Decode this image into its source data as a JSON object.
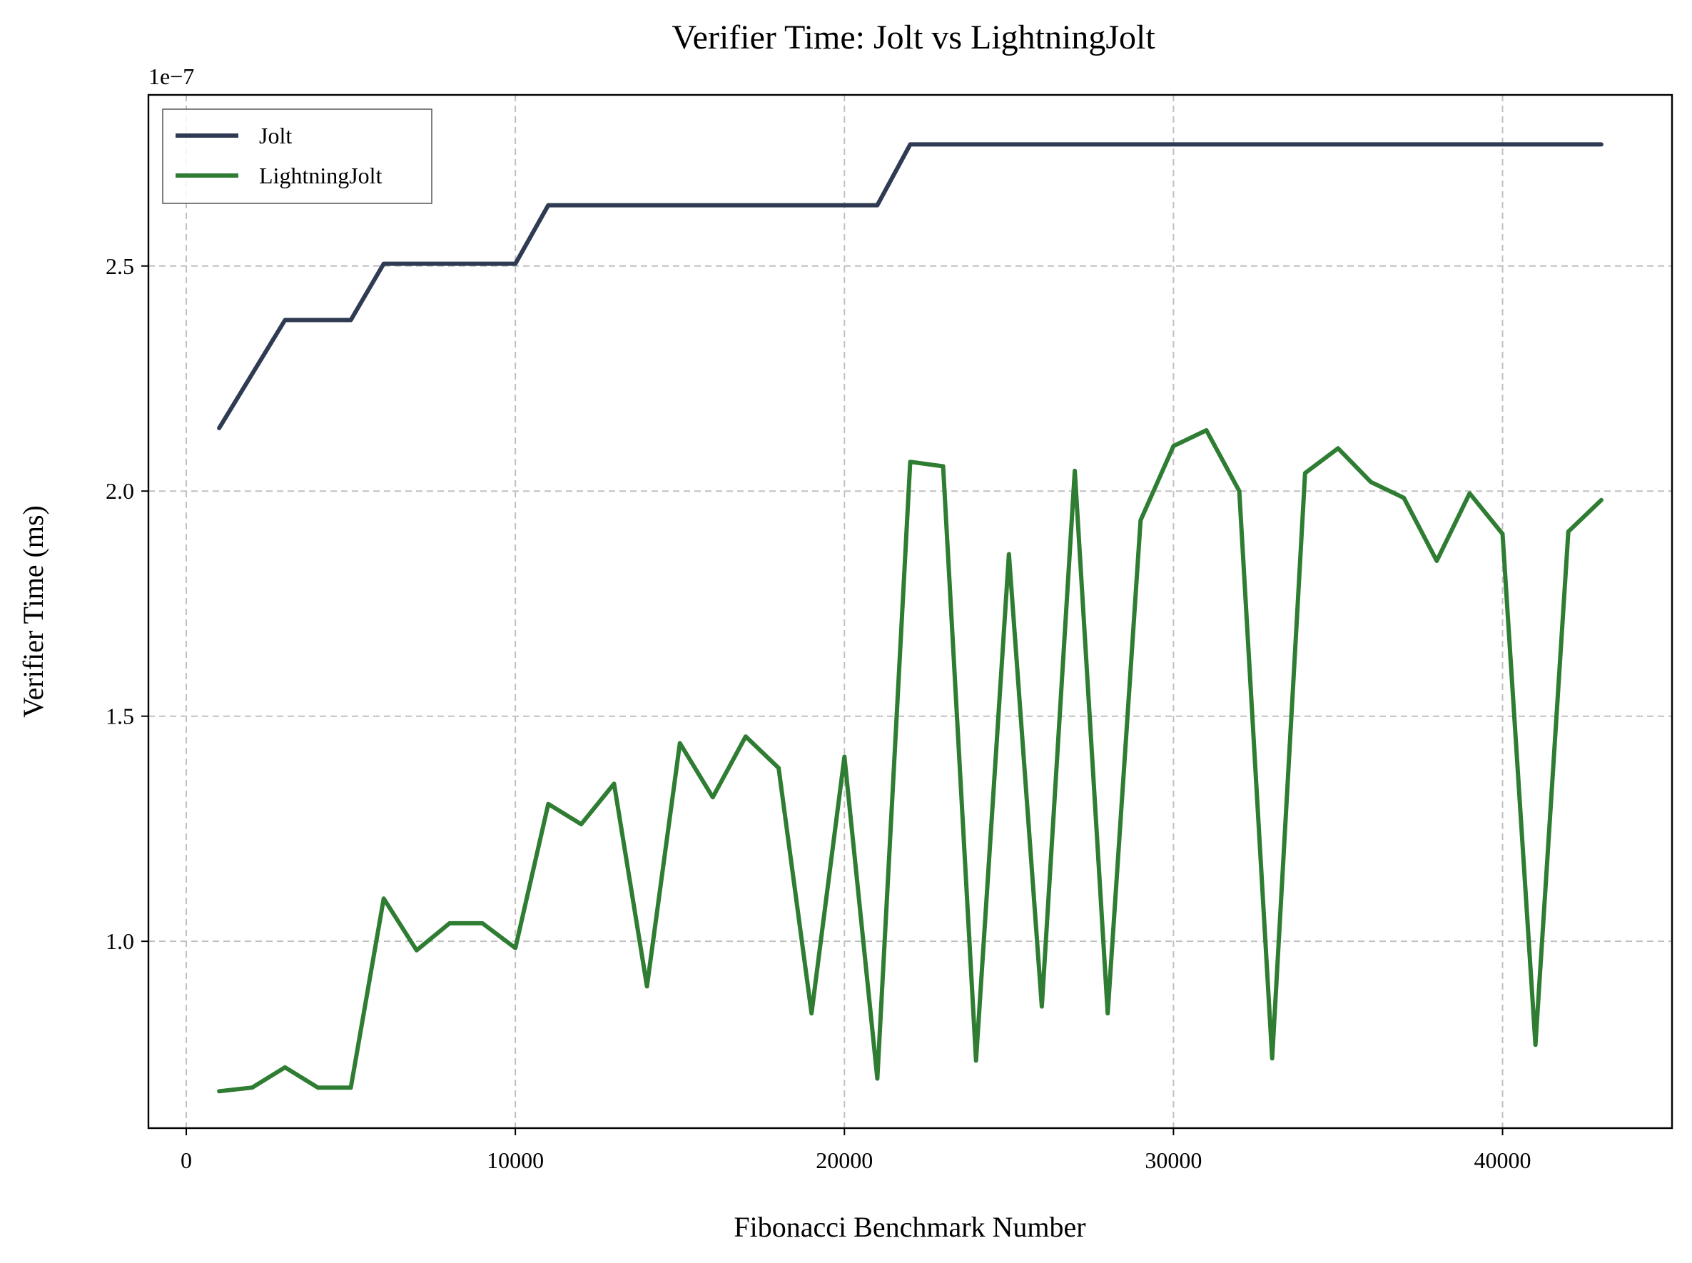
{
  "chart_data": {
    "type": "line",
    "title": "Verifier Time: Jolt vs LightningJolt",
    "xlabel": "Fibonacci Benchmark Number",
    "ylabel": "Verifier Time (ms)",
    "y_offset_label": "1e−7",
    "xlim": [
      -1150,
      45150
    ],
    "ylim": [
      0.585,
      2.88
    ],
    "x_ticks": [
      0,
      10000,
      20000,
      30000,
      40000
    ],
    "x_tick_labels": [
      "0",
      "10000",
      "20000",
      "30000",
      "40000"
    ],
    "y_ticks": [
      1.0,
      1.5,
      2.0,
      2.5
    ],
    "y_tick_labels": [
      "1.0",
      "1.5",
      "2.0",
      "2.5"
    ],
    "grid": true,
    "legend_position": "upper-left",
    "x": [
      1000,
      2000,
      3000,
      4000,
      5000,
      6000,
      7000,
      8000,
      9000,
      10000,
      11000,
      12000,
      13000,
      14000,
      15000,
      16000,
      17000,
      18000,
      19000,
      20000,
      21000,
      22000,
      23000,
      24000,
      25000,
      26000,
      27000,
      28000,
      29000,
      30000,
      31000,
      32000,
      33000,
      34000,
      35000,
      36000,
      37000,
      38000,
      39000,
      40000,
      41000,
      42000,
      43000
    ],
    "series": [
      {
        "name": "Jolt",
        "color": "#2e3b52",
        "values": [
          2.14,
          2.26,
          2.38,
          2.38,
          2.38,
          2.505,
          2.505,
          2.505,
          2.505,
          2.505,
          2.635,
          2.635,
          2.635,
          2.635,
          2.635,
          2.635,
          2.635,
          2.635,
          2.635,
          2.635,
          2.635,
          2.77,
          2.77,
          2.77,
          2.77,
          2.77,
          2.77,
          2.77,
          2.77,
          2.77,
          2.77,
          2.77,
          2.77,
          2.77,
          2.77,
          2.77,
          2.77,
          2.77,
          2.77,
          2.77,
          2.77,
          2.77,
          2.77
        ]
      },
      {
        "name": "LightningJolt",
        "color": "#2e7d32",
        "values": [
          0.667,
          0.675,
          0.72,
          0.675,
          0.675,
          1.095,
          0.98,
          1.04,
          1.04,
          0.985,
          1.305,
          1.26,
          1.35,
          0.9,
          1.44,
          1.32,
          1.455,
          1.385,
          0.84,
          1.41,
          0.695,
          2.065,
          2.055,
          0.735,
          1.86,
          0.855,
          2.045,
          0.84,
          1.935,
          2.1,
          2.135,
          2.0,
          0.74,
          2.04,
          2.095,
          2.02,
          1.985,
          1.845,
          1.995,
          1.905,
          0.77,
          1.91,
          1.98
        ]
      }
    ]
  }
}
